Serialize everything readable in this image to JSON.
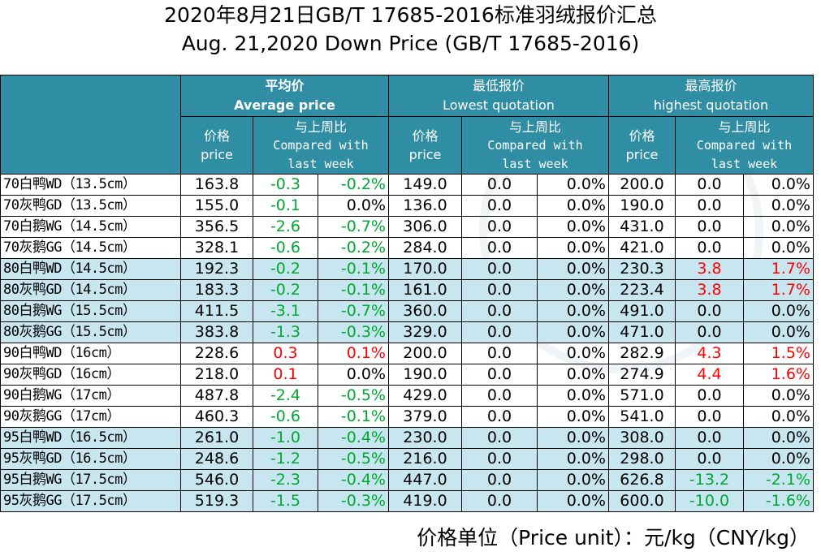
{
  "title_cn": "2020年8月21日GB/T 17685-2016标准羽绒报价汇总",
  "title_en": "Aug. 21,2020 Down Price (GB/T 17685-2016)",
  "headers": {
    "avg_cn": "平均价",
    "avg_en": "Average price",
    "low_cn": "最低报价",
    "low_en": "Lowest quotation",
    "high_cn": "最高报价",
    "high_en": "highest quotation",
    "price_cn": "价格",
    "price_en": "price",
    "cmp_cn": "与上周比",
    "cmp_en1": "Compared with",
    "cmp_en2": "last week"
  },
  "rows": [
    {
      "name": "70白鸭WD（13.5cm）",
      "avg": "163.8",
      "avg_chg": "-0.3",
      "avg_pct": "-0.2%",
      "low": "149.0",
      "low_chg": "0.0",
      "low_pct": "0.0%",
      "high": "200.0",
      "high_chg": "0.0",
      "high_pct": "0.0%"
    },
    {
      "name": "70灰鸭GD（13.5cm）",
      "avg": "155.0",
      "avg_chg": "-0.1",
      "avg_pct": "0.0%",
      "low": "136.0",
      "low_chg": "0.0",
      "low_pct": "0.0%",
      "high": "190.0",
      "high_chg": "0.0",
      "high_pct": "0.0%"
    },
    {
      "name": "70白鹅WG（14.5cm）",
      "avg": "356.5",
      "avg_chg": "-2.6",
      "avg_pct": "-0.7%",
      "low": "306.0",
      "low_chg": "0.0",
      "low_pct": "0.0%",
      "high": "431.0",
      "high_chg": "0.0",
      "high_pct": "0.0%"
    },
    {
      "name": "70灰鹅GG（14.5cm）",
      "avg": "328.1",
      "avg_chg": "-0.6",
      "avg_pct": "-0.2%",
      "low": "284.0",
      "low_chg": "0.0",
      "low_pct": "0.0%",
      "high": "421.0",
      "high_chg": "0.0",
      "high_pct": "0.0%"
    },
    {
      "name": "80白鸭WD（14.5cm）",
      "avg": "192.3",
      "avg_chg": "-0.2",
      "avg_pct": "-0.1%",
      "low": "170.0",
      "low_chg": "0.0",
      "low_pct": "0.0%",
      "high": "230.3",
      "high_chg": "3.8",
      "high_pct": "1.7%"
    },
    {
      "name": "80灰鸭GD（14.5cm）",
      "avg": "183.3",
      "avg_chg": "-0.2",
      "avg_pct": "-0.1%",
      "low": "161.0",
      "low_chg": "0.0",
      "low_pct": "0.0%",
      "high": "223.4",
      "high_chg": "3.8",
      "high_pct": "1.7%"
    },
    {
      "name": "80白鹅WG（15.5cm）",
      "avg": "411.5",
      "avg_chg": "-3.1",
      "avg_pct": "-0.7%",
      "low": "360.0",
      "low_chg": "0.0",
      "low_pct": "0.0%",
      "high": "491.0",
      "high_chg": "0.0",
      "high_pct": "0.0%"
    },
    {
      "name": "80灰鹅GG（15.5cm）",
      "avg": "383.8",
      "avg_chg": "-1.3",
      "avg_pct": "-0.3%",
      "low": "329.0",
      "low_chg": "0.0",
      "low_pct": "0.0%",
      "high": "471.0",
      "high_chg": "0.0",
      "high_pct": "0.0%"
    },
    {
      "name": "90白鸭WD（16cm）",
      "avg": "228.6",
      "avg_chg": "0.3",
      "avg_pct": "0.1%",
      "low": "200.0",
      "low_chg": "0.0",
      "low_pct": "0.0%",
      "high": "282.9",
      "high_chg": "4.3",
      "high_pct": "1.5%"
    },
    {
      "name": "90灰鸭GD（16cm）",
      "avg": "218.0",
      "avg_chg": "0.1",
      "avg_pct": "0.0%",
      "low": "190.0",
      "low_chg": "0.0",
      "low_pct": "0.0%",
      "high": "274.9",
      "high_chg": "4.4",
      "high_pct": "1.6%"
    },
    {
      "name": "90白鹅WG（17cm）",
      "avg": "487.8",
      "avg_chg": "-2.4",
      "avg_pct": "-0.5%",
      "low": "429.0",
      "low_chg": "0.0",
      "low_pct": "0.0%",
      "high": "571.0",
      "high_chg": "0.0",
      "high_pct": "0.0%"
    },
    {
      "name": "90灰鹅GG（17cm）",
      "avg": "460.3",
      "avg_chg": "-0.6",
      "avg_pct": "-0.1%",
      "low": "379.0",
      "low_chg": "0.0",
      "low_pct": "0.0%",
      "high": "541.0",
      "high_chg": "0.0",
      "high_pct": "0.0%"
    },
    {
      "name": "95白鸭WD（16.5cm）",
      "avg": "261.0",
      "avg_chg": "-1.0",
      "avg_pct": "-0.4%",
      "low": "230.0",
      "low_chg": "0.0",
      "low_pct": "0.0%",
      "high": "308.0",
      "high_chg": "0.0",
      "high_pct": "0.0%"
    },
    {
      "name": "95灰鸭GD（16.5cm）",
      "avg": "248.6",
      "avg_chg": "-1.2",
      "avg_pct": "-0.5%",
      "low": "216.0",
      "low_chg": "0.0",
      "low_pct": "0.0%",
      "high": "298.0",
      "high_chg": "0.0",
      "high_pct": "0.0%"
    },
    {
      "name": "95白鹅WG（17.5cm）",
      "avg": "546.0",
      "avg_chg": "-2.3",
      "avg_pct": "-0.4%",
      "low": "447.0",
      "low_chg": "0.0",
      "low_pct": "0.0%",
      "high": "626.8",
      "high_chg": "-13.2",
      "high_pct": "-2.1%"
    },
    {
      "name": "95灰鹅GG（17.5cm）",
      "avg": "519.3",
      "avg_chg": "-1.5",
      "avg_pct": "-0.3%",
      "low": "419.0",
      "low_chg": "0.0",
      "low_pct": "0.0%",
      "high": "600.0",
      "high_chg": "-10.0",
      "high_pct": "-1.6%"
    }
  ],
  "row_bands": [
    false,
    false,
    false,
    false,
    true,
    true,
    true,
    true,
    false,
    false,
    false,
    false,
    true,
    true,
    true,
    true
  ],
  "colors": {
    "header_bg": "#2f8ea4",
    "band_bg": "#c7e6ef",
    "up": "#ff0000",
    "down": "#00a830"
  },
  "unit_note": "价格单位（Price unit）：元/kg（CNY/kg）"
}
